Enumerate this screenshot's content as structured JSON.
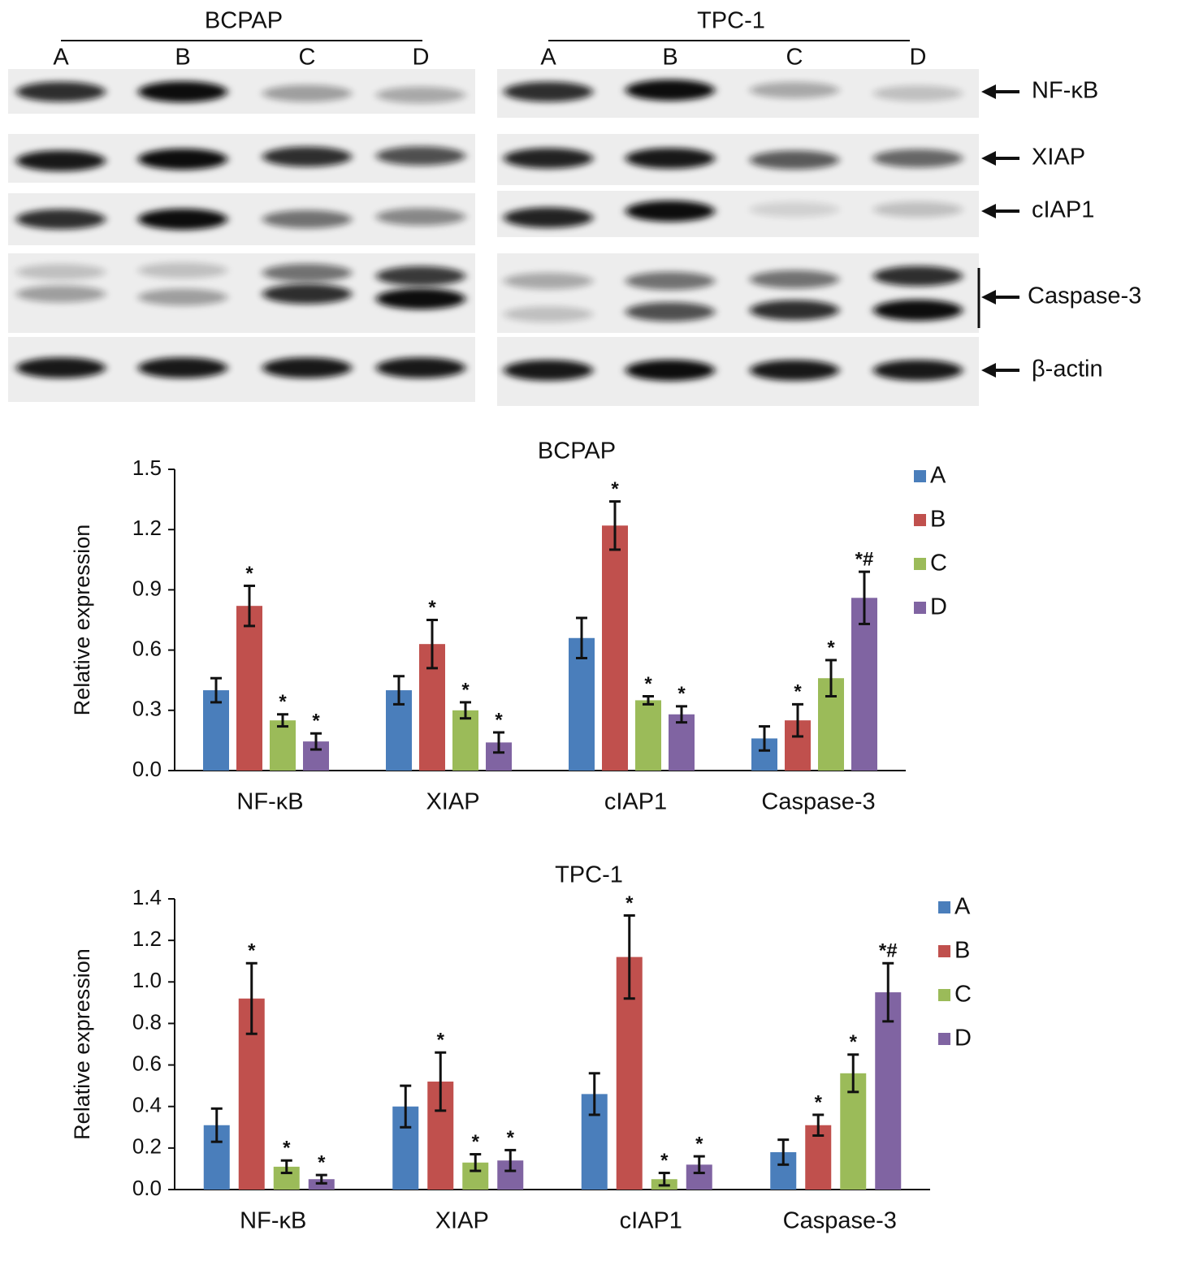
{
  "blots": {
    "groups": [
      {
        "title": "BCPAP",
        "lanes": [
          "A",
          "B",
          "C",
          "D"
        ]
      },
      {
        "title": "TPC-1",
        "lanes": [
          "A",
          "B",
          "C",
          "D"
        ]
      }
    ],
    "proteins": [
      "NF-κB",
      "XIAP",
      "cIAP1",
      "Caspase-3",
      "β-actin"
    ]
  },
  "chart_data": [
    {
      "type": "bar",
      "title": "BCPAP",
      "y_label": "Relative expression",
      "categories": [
        "NF-κB",
        "XIAP",
        "cIAP1",
        "Caspase-3"
      ],
      "ylim": [
        0,
        1.5
      ],
      "yticks": [
        {
          "value": 0,
          "label": "0.0"
        },
        0.3,
        0.6,
        0.9,
        1.2,
        1.5
      ],
      "series": [
        {
          "name": "A",
          "color": "#4a7ebb",
          "values": [
            0.4,
            0.4,
            0.66,
            0.16
          ],
          "errors": [
            0.06,
            0.07,
            0.1,
            0.06
          ]
        },
        {
          "name": "B",
          "color": "#c0504d",
          "values": [
            0.82,
            0.63,
            1.22,
            0.25
          ],
          "errors": [
            0.1,
            0.12,
            0.12,
            0.08
          ],
          "markers": [
            "*",
            "*",
            "*",
            "*"
          ]
        },
        {
          "name": "C",
          "color": "#9bbb59",
          "values": [
            0.25,
            0.3,
            0.35,
            0.46
          ],
          "errors": [
            0.03,
            0.04,
            0.02,
            0.09
          ],
          "markers": [
            "*",
            "*",
            "*",
            "*"
          ]
        },
        {
          "name": "D",
          "color": "#8064a2",
          "values": [
            0.145,
            0.14,
            0.28,
            0.86
          ],
          "errors": [
            0.04,
            0.05,
            0.04,
            0.13
          ],
          "markers": [
            "*",
            "*",
            "*",
            "*#"
          ]
        }
      ]
    },
    {
      "type": "bar",
      "title": "TPC-1",
      "y_label": "Relative expression",
      "categories": [
        "NF-κB",
        "XIAP",
        "cIAP1",
        "Caspase-3"
      ],
      "ylim": [
        0,
        1.4
      ],
      "yticks": [
        {
          "value": 0,
          "label": "0.0"
        },
        0.2,
        0.4,
        0.6,
        0.8,
        {
          "value": 1,
          "label": "1.0"
        },
        1.2,
        1.4
      ],
      "series": [
        {
          "name": "A",
          "color": "#4a7ebb",
          "values": [
            0.31,
            0.4,
            0.46,
            0.18
          ],
          "errors": [
            0.08,
            0.1,
            0.1,
            0.06
          ]
        },
        {
          "name": "B",
          "color": "#c0504d",
          "values": [
            0.92,
            0.52,
            1.12,
            0.31
          ],
          "errors": [
            0.17,
            0.14,
            0.2,
            0.05
          ],
          "markers": [
            "*",
            "*",
            "*",
            "*"
          ]
        },
        {
          "name": "C",
          "color": "#9bbb59",
          "values": [
            0.11,
            0.13,
            0.05,
            0.56
          ],
          "errors": [
            0.03,
            0.04,
            0.03,
            0.09
          ],
          "markers": [
            "*",
            "*",
            "*",
            "*"
          ]
        },
        {
          "name": "D",
          "color": "#8064a2",
          "values": [
            0.05,
            0.14,
            0.12,
            0.95
          ],
          "errors": [
            0.02,
            0.05,
            0.04,
            0.14
          ],
          "markers": [
            "*",
            "*",
            "*",
            "*#"
          ]
        }
      ]
    }
  ]
}
